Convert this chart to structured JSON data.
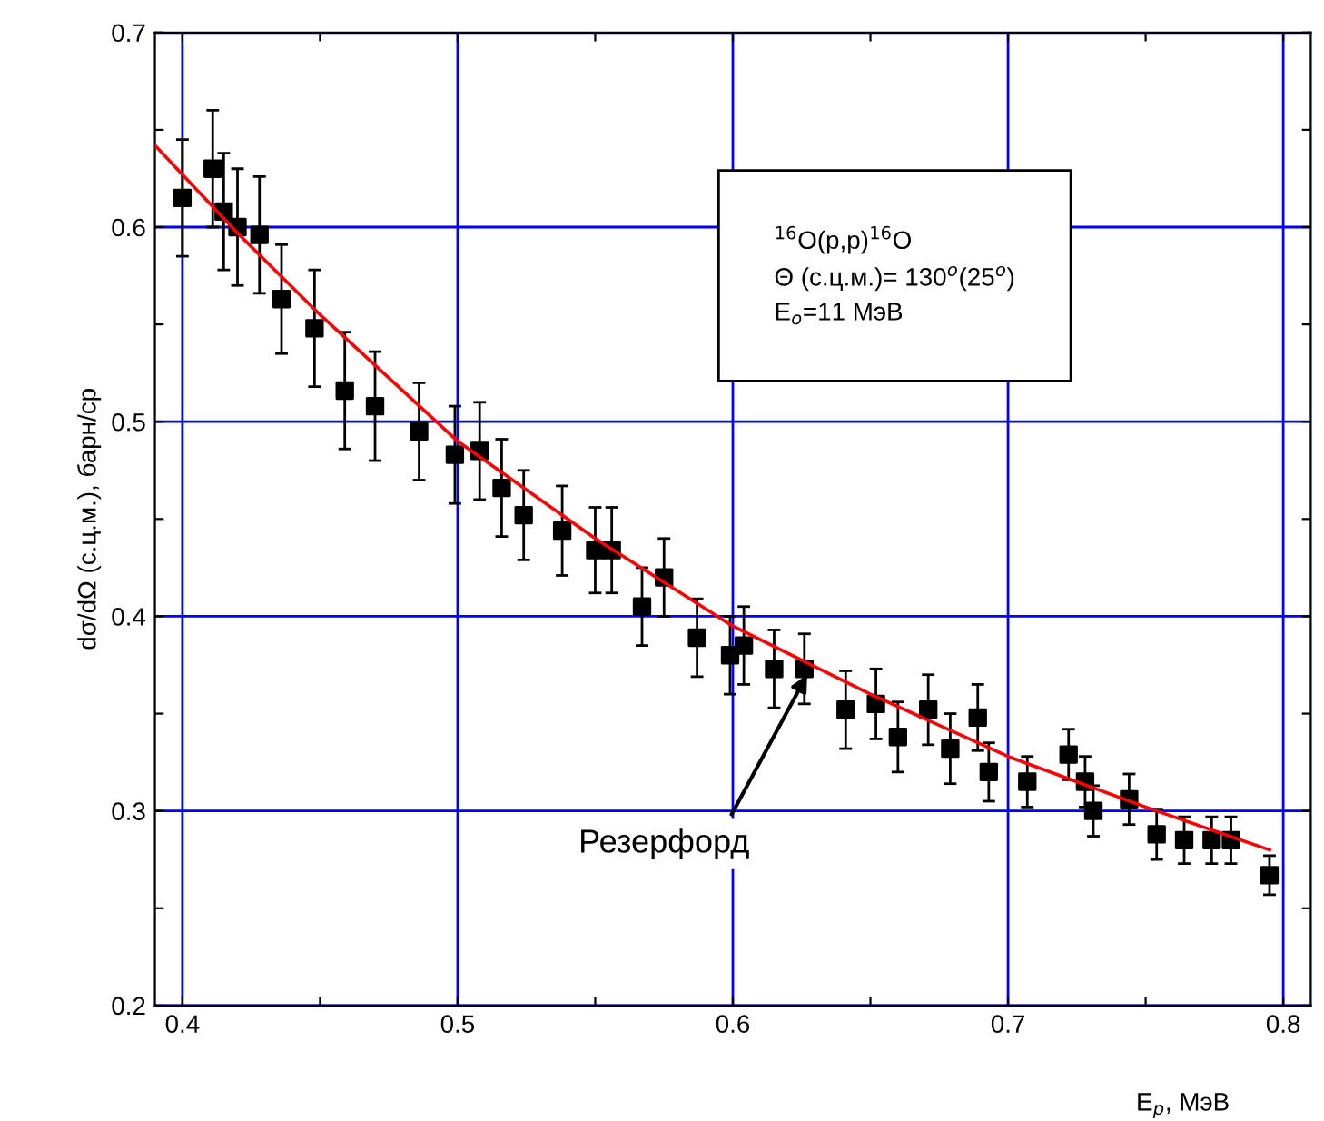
{
  "chart_data": {
    "type": "scatter",
    "xlabel": "E$_{p}$, МэВ",
    "ylabel": "dσ/dΩ (с.ц.м.), барн/ср",
    "xlim": [
      0.39,
      0.81
    ],
    "ylim": [
      0.2,
      0.7
    ],
    "xticks": [
      0.4,
      {
        "value": 0.45,
        "label": null
      },
      0.5,
      {
        "value": 0.55,
        "label": null
      },
      0.6,
      {
        "value": 0.65,
        "label": null
      },
      0.7,
      {
        "value": 0.75,
        "label": null
      },
      0.8
    ],
    "yticks": [
      0.2,
      {
        "value": 0.25,
        "label": null
      },
      0.3,
      {
        "value": 0.35,
        "label": null
      },
      0.4,
      {
        "value": 0.45,
        "label": null
      },
      0.5,
      {
        "value": 0.55,
        "label": null
      },
      0.6,
      {
        "value": 0.65,
        "label": null
      },
      0.7
    ],
    "grid": true,
    "legend": false,
    "annotations": [
      "$^{16}$O(p,p)$^{16}$O\nΘ (с.ц.м.)= 130$^{o}$(25$^{o}$)\nE$_{o}$=11 МэВ",
      {
        "text": "Резерфорд",
        "x": 0.627,
        "y": 0.37
      }
    ],
    "series": [
      {
        "color": "#000000",
        "marker": "square",
        "x": [
          0.4,
          0.411,
          0.415,
          0.42,
          0.428,
          0.436,
          0.448,
          0.459,
          0.47,
          0.486,
          0.499,
          0.508,
          0.516,
          0.524,
          0.538,
          0.55,
          0.556,
          0.567,
          0.575,
          0.587,
          0.599,
          0.604,
          0.615,
          0.626,
          0.641,
          0.652,
          0.66,
          0.671,
          0.679,
          0.689,
          0.693,
          0.707,
          0.722,
          0.728,
          0.731,
          0.744,
          0.754,
          0.764,
          0.774,
          0.781,
          0.795
        ],
        "values": [
          0.615,
          0.63,
          0.608,
          0.6,
          0.596,
          0.563,
          0.548,
          0.516,
          0.508,
          0.495,
          0.483,
          0.485,
          0.466,
          0.452,
          0.444,
          0.434,
          0.434,
          0.405,
          0.42,
          0.389,
          0.38,
          0.385,
          0.373,
          0.373,
          0.352,
          0.355,
          0.338,
          0.352,
          0.332,
          0.348,
          0.32,
          0.315,
          0.329,
          0.315,
          0.3,
          0.306,
          0.288,
          0.285,
          0.285,
          0.285,
          0.267
        ],
        "errors": [
          0.03,
          0.03,
          0.03,
          0.03,
          0.03,
          0.028,
          0.03,
          0.03,
          0.028,
          0.025,
          0.025,
          0.025,
          0.025,
          0.023,
          0.023,
          0.022,
          0.022,
          0.02,
          0.02,
          0.02,
          0.02,
          0.02,
          0.02,
          0.018,
          0.02,
          0.018,
          0.018,
          0.018,
          0.018,
          0.017,
          0.015,
          0.013,
          0.013,
          0.013,
          0.013,
          0.013,
          0.013,
          0.012,
          0.012,
          0.012,
          0.01
        ]
      },
      {
        "type": "line",
        "color": "#ff0000",
        "marker": "none",
        "line_style": "solid",
        "x": [
          0.39,
          0.42,
          0.45,
          0.5,
          0.55,
          0.6,
          0.65,
          0.7,
          0.75,
          0.795
        ],
        "values": [
          0.642,
          0.597,
          0.555,
          0.49,
          0.44,
          0.395,
          0.36,
          0.328,
          0.302,
          0.28
        ]
      }
    ]
  }
}
